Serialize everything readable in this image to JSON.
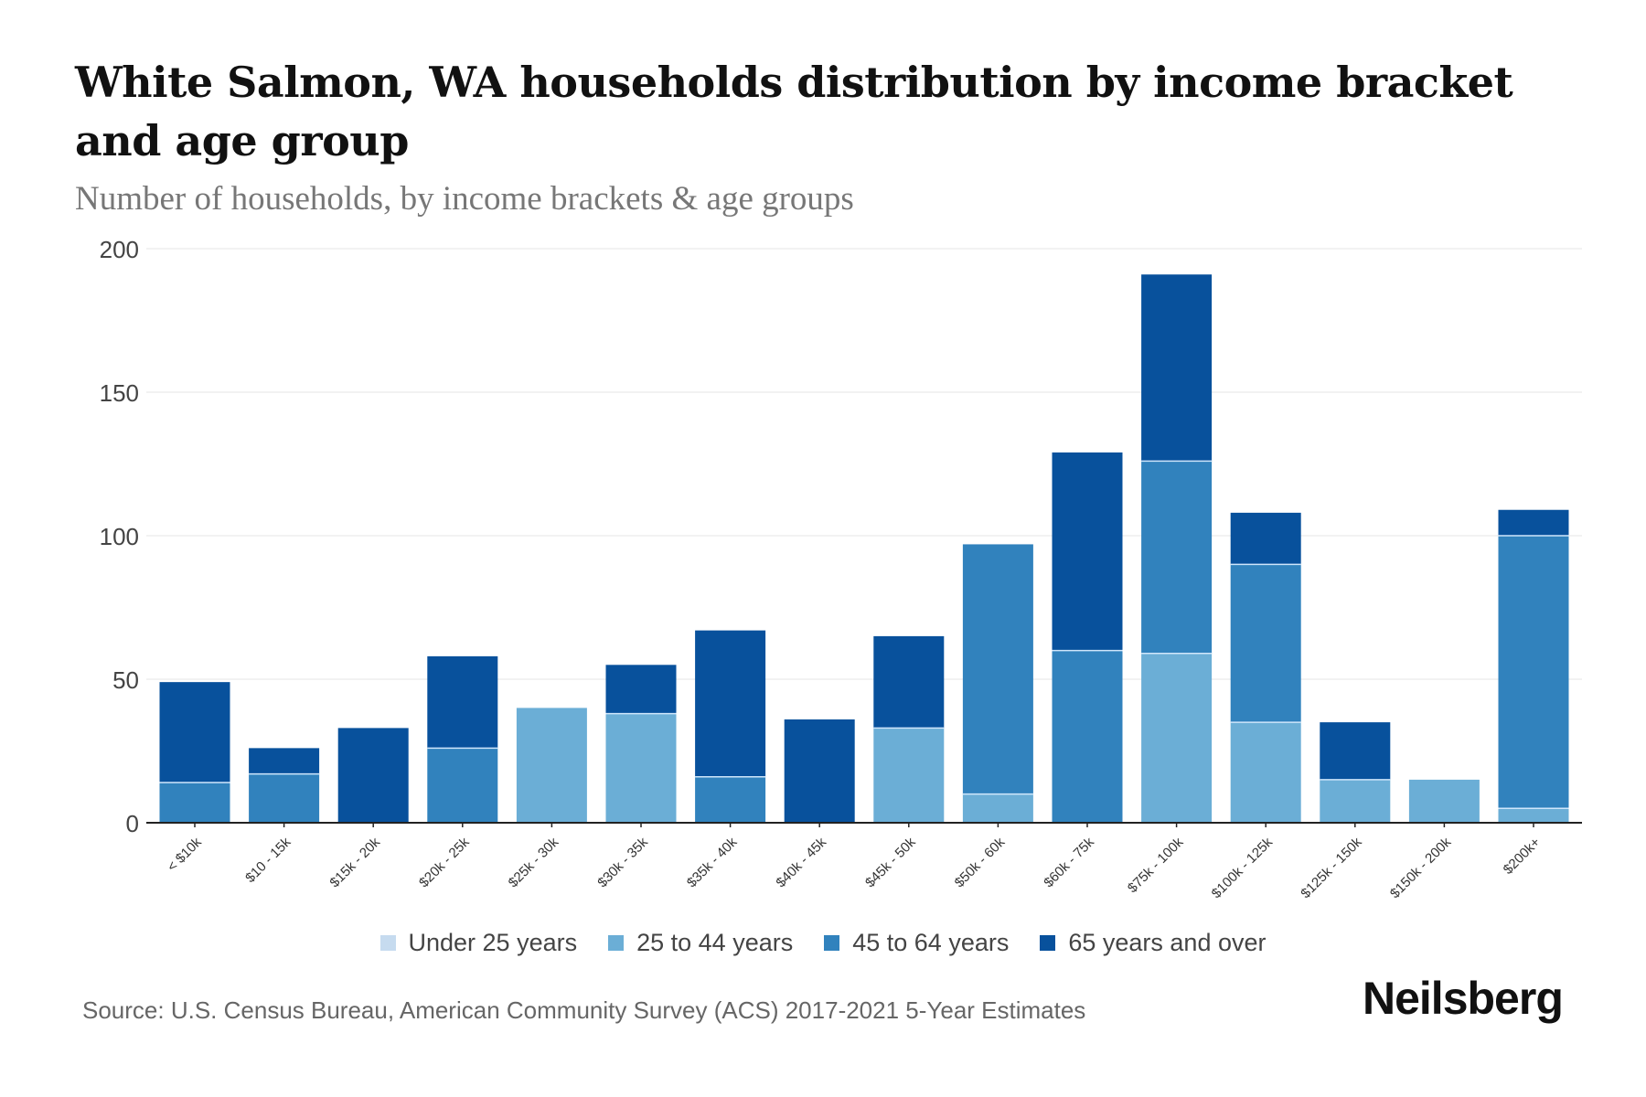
{
  "header": {
    "title": "White Salmon, WA households distribution by income bracket and age group",
    "subtitle": "Number of households, by income brackets & age groups"
  },
  "footer": {
    "source": "Source: U.S. Census Bureau, American Community Survey (ACS) 2017-2021 5-Year Estimates",
    "brand": "Neilsberg"
  },
  "legend": [
    {
      "label": "Under 25 years",
      "color": "#c6dbef"
    },
    {
      "label": "25 to 44 years",
      "color": "#6baed6"
    },
    {
      "label": "45 to 64 years",
      "color": "#3182bd"
    },
    {
      "label": "65 years and over",
      "color": "#08519c"
    }
  ],
  "chart_data": {
    "type": "bar",
    "stacked": true,
    "title": "White Salmon, WA households distribution by income bracket and age group",
    "subtitle": "Number of households, by income brackets & age groups",
    "xlabel": "",
    "ylabel": "",
    "ylim": [
      0,
      200
    ],
    "yticks": [
      0,
      50,
      100,
      150,
      200
    ],
    "grid": true,
    "legend_position": "bottom",
    "categories": [
      "< $10k",
      "$10 - 15k",
      "$15k - 20k",
      "$20k - 25k",
      "$25k - 30k",
      "$30k - 35k",
      "$35k - 40k",
      "$40k - 45k",
      "$45k - 50k",
      "$50k - 60k",
      "$60k - 75k",
      "$75k - 100k",
      "$100k - 125k",
      "$125k - 150k",
      "$150k - 200k",
      "$200k+"
    ],
    "series": [
      {
        "name": "Under 25 years",
        "color": "#c6dbef",
        "values": [
          0,
          0,
          0,
          0,
          0,
          0,
          0,
          0,
          0,
          0,
          0,
          0,
          0,
          0,
          0,
          0
        ]
      },
      {
        "name": "25 to 44 years",
        "color": "#6baed6",
        "values": [
          0,
          0,
          0,
          0,
          40,
          38,
          0,
          0,
          33,
          10,
          0,
          59,
          35,
          15,
          15,
          5
        ]
      },
      {
        "name": "45 to 64 years",
        "color": "#3182bd",
        "values": [
          14,
          17,
          0,
          26,
          0,
          0,
          16,
          0,
          0,
          87,
          60,
          67,
          55,
          0,
          0,
          95
        ]
      },
      {
        "name": "65 years and over",
        "color": "#08519c",
        "values": [
          35,
          9,
          33,
          32,
          0,
          17,
          51,
          36,
          32,
          0,
          69,
          65,
          18,
          20,
          0,
          9
        ]
      }
    ],
    "source": "Source: U.S. Census Bureau, American Community Survey (ACS) 2017-2021 5-Year Estimates"
  }
}
